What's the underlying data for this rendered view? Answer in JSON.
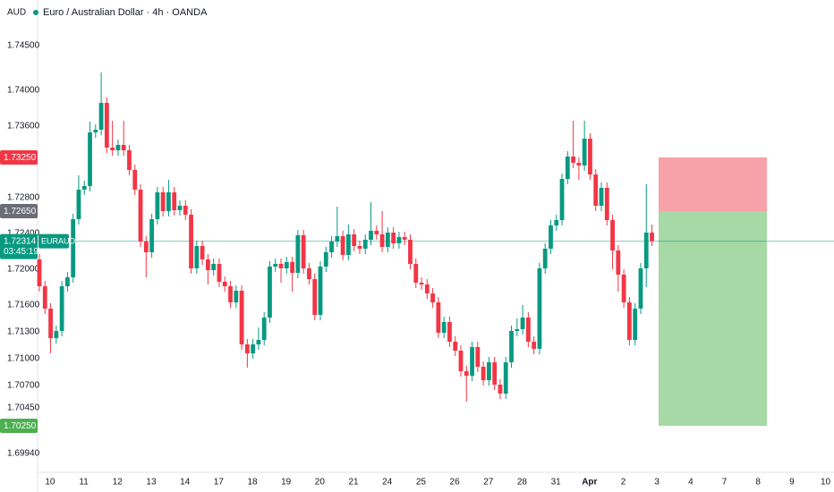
{
  "header": {
    "currency": "AUD",
    "title": "Euro / Australian Dollar · 4h · OANDA"
  },
  "chart_data": {
    "type": "candlestick",
    "up_color": "#089981",
    "down_color": "#f23645",
    "grid": false,
    "ylim": [
      1.6971,
      1.7501
    ],
    "yticks": [
      {
        "value": 1.745,
        "label": "1.74500"
      },
      {
        "value": 1.74,
        "label": "1.74000"
      },
      {
        "value": 1.736,
        "label": "1.73600"
      },
      {
        "value": 1.728,
        "label": "1.72800"
      },
      {
        "value": 1.724,
        "label": "1.72400"
      },
      {
        "value": 1.72,
        "label": "1.72000"
      },
      {
        "value": 1.716,
        "label": "1.71600"
      },
      {
        "value": 1.713,
        "label": "1.71300"
      },
      {
        "value": 1.71,
        "label": "1.71000"
      },
      {
        "value": 1.707,
        "label": "1.70700"
      },
      {
        "value": 1.7045,
        "label": "1.70450"
      },
      {
        "value": 1.6994,
        "label": "1.69940"
      }
    ],
    "categories": [
      "10",
      "11",
      "12",
      "13",
      "14",
      "17",
      "18",
      "19",
      "20",
      "21",
      "24",
      "25",
      "26",
      "27",
      "28",
      "31",
      "Apr",
      "2",
      "3",
      "4",
      "7",
      "8",
      "9",
      "10"
    ],
    "candles": [
      [
        1.7211,
        1.7217,
        1.7175,
        1.7181
      ],
      [
        1.7181,
        1.7187,
        1.715,
        1.7156
      ],
      [
        1.7156,
        1.7162,
        1.7106,
        1.7123
      ],
      [
        1.7123,
        1.7137,
        1.7117,
        1.7131
      ],
      [
        1.7131,
        1.7187,
        1.7125,
        1.7181
      ],
      [
        1.7181,
        1.7197,
        1.7175,
        1.7191
      ],
      [
        1.7191,
        1.7262,
        1.7185,
        1.7256
      ],
      [
        1.7256,
        1.7305,
        1.725,
        1.7289
      ],
      [
        1.7289,
        1.7299,
        1.7283,
        1.7293
      ],
      [
        1.7293,
        1.7365,
        1.7287,
        1.7353
      ],
      [
        1.7353,
        1.7362,
        1.7347,
        1.7356
      ],
      [
        1.7356,
        1.742,
        1.735,
        1.7386
      ],
      [
        1.7386,
        1.7392,
        1.733,
        1.7336
      ],
      [
        1.7336,
        1.7366,
        1.7327,
        1.7333
      ],
      [
        1.7333,
        1.7345,
        1.7327,
        1.7339
      ],
      [
        1.7339,
        1.7366,
        1.7327,
        1.7333
      ],
      [
        1.7333,
        1.7339,
        1.7305,
        1.7311
      ],
      [
        1.7311,
        1.7317,
        1.7283,
        1.7289
      ],
      [
        1.7289,
        1.7295,
        1.7225,
        1.7231
      ],
      [
        1.7231,
        1.7237,
        1.7191,
        1.7219
      ],
      [
        1.7219,
        1.7262,
        1.7213,
        1.7256
      ],
      [
        1.7256,
        1.7292,
        1.725,
        1.7286
      ],
      [
        1.7286,
        1.7292,
        1.7259,
        1.7265
      ],
      [
        1.7265,
        1.73,
        1.7259,
        1.7286
      ],
      [
        1.7286,
        1.7292,
        1.726,
        1.7266
      ],
      [
        1.7266,
        1.7277,
        1.726,
        1.7271
      ],
      [
        1.7271,
        1.7277,
        1.7255,
        1.7261
      ],
      [
        1.7261,
        1.7267,
        1.7195,
        1.7201
      ],
      [
        1.7201,
        1.7232,
        1.7195,
        1.7226
      ],
      [
        1.7226,
        1.7232,
        1.7205,
        1.7211
      ],
      [
        1.7211,
        1.7217,
        1.7183,
        1.7199
      ],
      [
        1.7199,
        1.7212,
        1.7193,
        1.7206
      ],
      [
        1.7206,
        1.7212,
        1.718,
        1.7186
      ],
      [
        1.7186,
        1.7192,
        1.7175,
        1.7181
      ],
      [
        1.7181,
        1.7187,
        1.7157,
        1.7163
      ],
      [
        1.7163,
        1.7182,
        1.7157,
        1.7176
      ],
      [
        1.7176,
        1.7182,
        1.711,
        1.7116
      ],
      [
        1.7116,
        1.7122,
        1.709,
        1.7106
      ],
      [
        1.7106,
        1.7122,
        1.71,
        1.7116
      ],
      [
        1.7116,
        1.7135,
        1.711,
        1.7121
      ],
      [
        1.7121,
        1.7152,
        1.7115,
        1.7146
      ],
      [
        1.7146,
        1.7209,
        1.714,
        1.7203
      ],
      [
        1.7203,
        1.7212,
        1.7197,
        1.7206
      ],
      [
        1.7206,
        1.7212,
        1.7185,
        1.7201
      ],
      [
        1.7201,
        1.7214,
        1.7195,
        1.7208
      ],
      [
        1.7208,
        1.7214,
        1.7175,
        1.7196
      ],
      [
        1.7196,
        1.7244,
        1.719,
        1.7238
      ],
      [
        1.7238,
        1.7244,
        1.7195,
        1.7201
      ],
      [
        1.7201,
        1.7207,
        1.7183,
        1.7189
      ],
      [
        1.7189,
        1.7195,
        1.7143,
        1.7149
      ],
      [
        1.7149,
        1.7209,
        1.7143,
        1.7203
      ],
      [
        1.7203,
        1.7225,
        1.7197,
        1.7219
      ],
      [
        1.7219,
        1.7237,
        1.7213,
        1.7231
      ],
      [
        1.7231,
        1.727,
        1.7225,
        1.7237
      ],
      [
        1.7237,
        1.7243,
        1.721,
        1.7216
      ],
      [
        1.7216,
        1.725,
        1.721,
        1.7239
      ],
      [
        1.7239,
        1.7245,
        1.722,
        1.7226
      ],
      [
        1.7226,
        1.7232,
        1.7217,
        1.7223
      ],
      [
        1.7223,
        1.7239,
        1.7217,
        1.7233
      ],
      [
        1.7233,
        1.7275,
        1.7227,
        1.7243
      ],
      [
        1.7243,
        1.7249,
        1.7233,
        1.7239
      ],
      [
        1.7239,
        1.7265,
        1.7219,
        1.7225
      ],
      [
        1.7225,
        1.7247,
        1.7219,
        1.7241
      ],
      [
        1.7241,
        1.7247,
        1.7223,
        1.7229
      ],
      [
        1.7229,
        1.7242,
        1.7223,
        1.7236
      ],
      [
        1.7236,
        1.7242,
        1.7227,
        1.7233
      ],
      [
        1.7233,
        1.7239,
        1.72,
        1.7206
      ],
      [
        1.7206,
        1.7212,
        1.7179,
        1.7185
      ],
      [
        1.7185,
        1.7191,
        1.7177,
        1.7183
      ],
      [
        1.7183,
        1.7189,
        1.7167,
        1.7173
      ],
      [
        1.7173,
        1.7179,
        1.7157,
        1.7163
      ],
      [
        1.7163,
        1.7169,
        1.7123,
        1.7129
      ],
      [
        1.7129,
        1.7147,
        1.7123,
        1.7141
      ],
      [
        1.7141,
        1.7147,
        1.7113,
        1.7119
      ],
      [
        1.7119,
        1.7125,
        1.7103,
        1.7109
      ],
      [
        1.7109,
        1.7115,
        1.708,
        1.7086
      ],
      [
        1.7086,
        1.7092,
        1.7052,
        1.7081
      ],
      [
        1.7081,
        1.7119,
        1.7075,
        1.7113
      ],
      [
        1.7113,
        1.7119,
        1.7085,
        1.7091
      ],
      [
        1.7091,
        1.7097,
        1.707,
        1.7076
      ],
      [
        1.7076,
        1.7102,
        1.707,
        1.7096
      ],
      [
        1.7096,
        1.7102,
        1.7065,
        1.7071
      ],
      [
        1.7071,
        1.7077,
        1.7055,
        1.7061
      ],
      [
        1.7061,
        1.7102,
        1.7055,
        1.7096
      ],
      [
        1.7096,
        1.7137,
        1.709,
        1.7131
      ],
      [
        1.7131,
        1.7145,
        1.7125,
        1.7133
      ],
      [
        1.7133,
        1.716,
        1.7127,
        1.7146
      ],
      [
        1.7146,
        1.7152,
        1.7113,
        1.7119
      ],
      [
        1.7119,
        1.7125,
        1.7105,
        1.7111
      ],
      [
        1.7111,
        1.7207,
        1.7105,
        1.7201
      ],
      [
        1.7201,
        1.7229,
        1.7195,
        1.7223
      ],
      [
        1.7223,
        1.7255,
        1.7217,
        1.7249
      ],
      [
        1.7249,
        1.7261,
        1.7243,
        1.7255
      ],
      [
        1.7255,
        1.7307,
        1.7249,
        1.7301
      ],
      [
        1.7301,
        1.7332,
        1.7295,
        1.7326
      ],
      [
        1.7326,
        1.7366,
        1.7313,
        1.7319
      ],
      [
        1.7319,
        1.7325,
        1.73,
        1.7316
      ],
      [
        1.7316,
        1.7366,
        1.731,
        1.7346
      ],
      [
        1.7346,
        1.7352,
        1.73,
        1.7306
      ],
      [
        1.7306,
        1.7312,
        1.7265,
        1.7271
      ],
      [
        1.7271,
        1.7297,
        1.7265,
        1.7291
      ],
      [
        1.7291,
        1.7297,
        1.7249,
        1.7255
      ],
      [
        1.7255,
        1.7261,
        1.72,
        1.7221
      ],
      [
        1.7221,
        1.7227,
        1.7175,
        1.7194
      ],
      [
        1.7194,
        1.72,
        1.7157,
        1.7163
      ],
      [
        1.7163,
        1.7169,
        1.7115,
        1.7121
      ],
      [
        1.7121,
        1.7162,
        1.7115,
        1.7156
      ],
      [
        1.7156,
        1.7207,
        1.715,
        1.7201
      ],
      [
        1.7201,
        1.7295,
        1.718,
        1.7241
      ],
      [
        1.7241,
        1.725,
        1.7226,
        1.72314
      ]
    ],
    "last_price": {
      "value": 1.72314,
      "label": "1.72314",
      "symbol": "EURAUD",
      "countdown": "03:45:19",
      "color": "#089981"
    },
    "position": {
      "stop": {
        "value": 1.7325,
        "label": "1.73250",
        "color": "#f23645",
        "fill": "#f7a1a8"
      },
      "entry": {
        "value": 1.7265,
        "label": "1.72650",
        "color": "#6a6d78"
      },
      "target": {
        "value": 1.7025,
        "label": "1.70250",
        "color": "#4caf50",
        "fill": "#a6d9a5"
      }
    }
  }
}
